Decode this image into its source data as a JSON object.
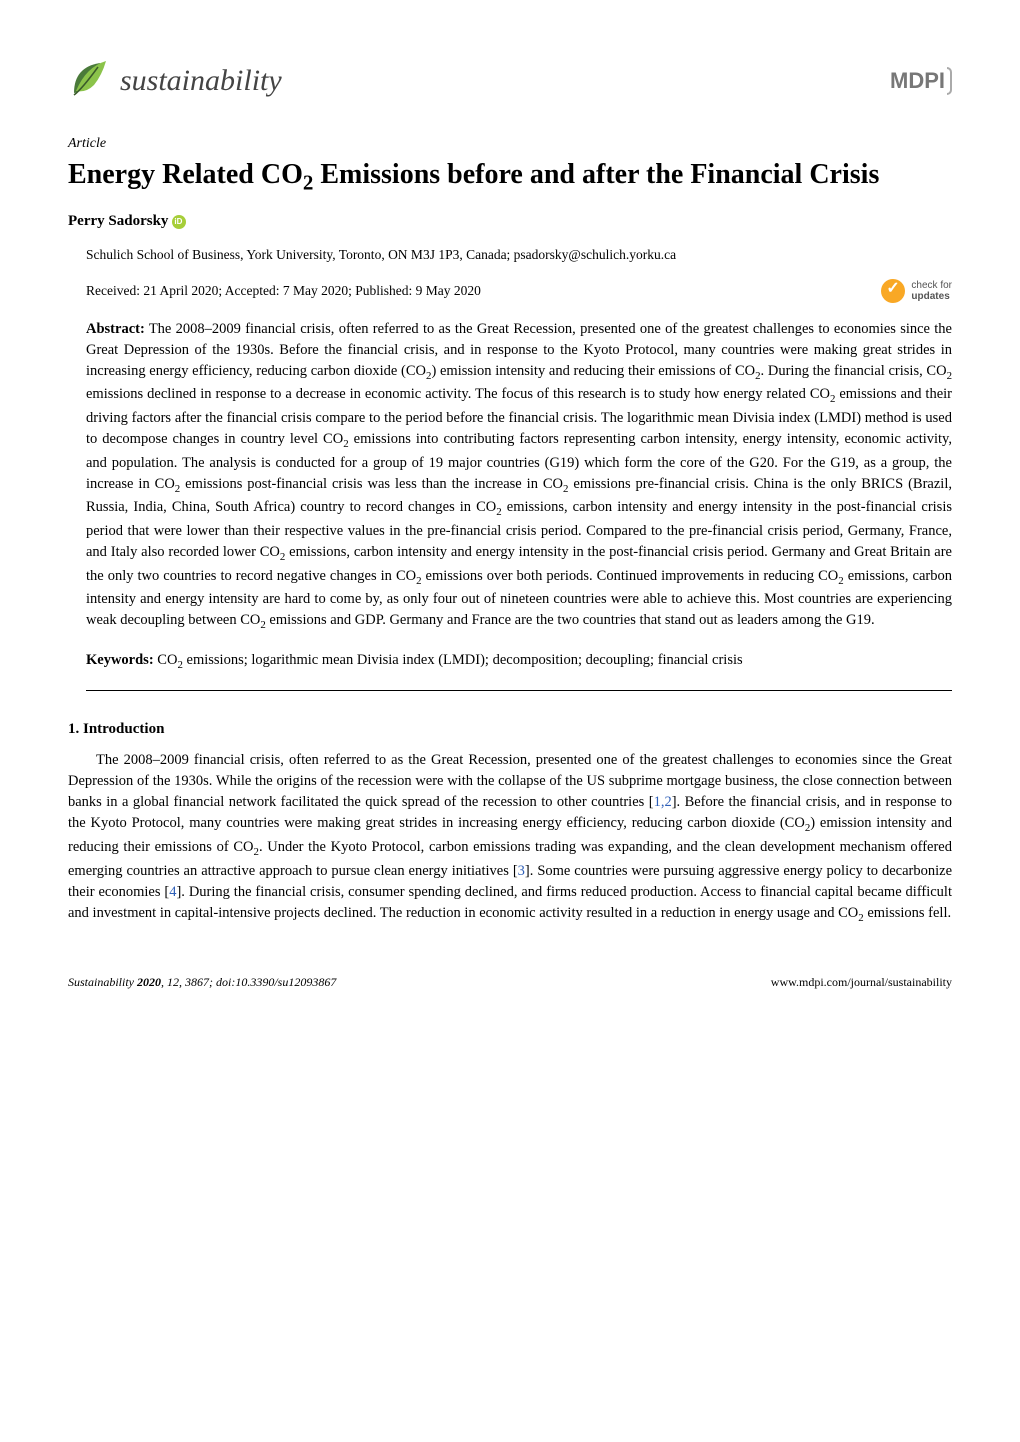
{
  "header": {
    "journal_name": "sustainability",
    "publisher": "MDPI",
    "leaf_color": "#4a7a3a",
    "leaf_accent_color": "#8bc34a"
  },
  "article": {
    "type": "Article",
    "title_html": "Energy Related CO<sub>2</sub> Emissions before and after the Financial Crisis",
    "author": "Perry Sadorsky",
    "has_orcid": true,
    "affiliation": "Schulich School of Business, York University, Toronto, ON M3J 1P3, Canada; psadorsky@schulich.yorku.ca",
    "dates": "Received: 21 April 2020; Accepted: 7 May 2020; Published: 9 May 2020",
    "check_updates_line1": "check for",
    "check_updates_line2": "updates"
  },
  "abstract": {
    "label": "Abstract:",
    "text_html": "The 2008–2009 financial crisis, often referred to as the Great Recession, presented one of the greatest challenges to economies since the Great Depression of the 1930s. Before the financial crisis, and in response to the Kyoto Protocol, many countries were making great strides in increasing energy efficiency, reducing carbon dioxide (CO<sub>2</sub>) emission intensity and reducing their emissions of CO<sub>2</sub>. During the financial crisis, CO<sub>2</sub> emissions declined in response to a decrease in economic activity. The focus of this research is to study how energy related CO<sub>2</sub> emissions and their driving factors after the financial crisis compare to the period before the financial crisis. The logarithmic mean Divisia index (LMDI) method is used to decompose changes in country level CO<sub>2</sub> emissions into contributing factors representing carbon intensity, energy intensity, economic activity, and population. The analysis is conducted for a group of 19 major countries (G19) which form the core of the G20. For the G19, as a group, the increase in CO<sub>2</sub> emissions post-financial crisis was less than the increase in CO<sub>2</sub> emissions pre-financial crisis. China is the only BRICS (Brazil, Russia, India, China, South Africa) country to record changes in CO<sub>2</sub> emissions, carbon intensity and energy intensity in the post-financial crisis period that were lower than their respective values in the pre-financial crisis period. Compared to the pre-financial crisis period, Germany, France, and Italy also recorded lower CO<sub>2</sub> emissions, carbon intensity and energy intensity in the post-financial crisis period. Germany and Great Britain are the only two countries to record negative changes in CO<sub>2</sub> emissions over both periods. Continued improvements in reducing CO<sub>2</sub> emissions, carbon intensity and energy intensity are hard to come by, as only four out of nineteen countries were able to achieve this. Most countries are experiencing weak decoupling between CO<sub>2</sub> emissions and GDP. Germany and France are the two countries that stand out as leaders among the G19."
  },
  "keywords": {
    "label": "Keywords:",
    "text_html": "CO<sub>2</sub> emissions; logarithmic mean Divisia index (LMDI); decomposition; decoupling; financial crisis"
  },
  "section": {
    "title": "1. Introduction",
    "text_html": "The 2008–2009 financial crisis, often referred to as the Great Recession, presented one of the greatest challenges to economies since the Great Depression of the 1930s. While the origins of the recession were with the collapse of the US subprime mortgage business, the close connection between banks in a global financial network facilitated the quick spread of the recession to other countries [1,2]. Before the financial crisis, and in response to the Kyoto Protocol, many countries were making great strides in increasing energy efficiency, reducing carbon dioxide (CO<sub>2</sub>) emission intensity and reducing their emissions of CO<sub>2</sub>. Under the Kyoto Protocol, carbon emissions trading was expanding, and the clean development mechanism offered emerging countries an attractive approach to pursue clean energy initiatives [3]. Some countries were pursuing aggressive energy policy to decarbonize their economies [4]. During the financial crisis, consumer spending declined, and firms reduced production. Access to financial capital became difficult and investment in capital-intensive projects declined. The reduction in economic activity resulted in a reduction in energy usage and CO<sub>2</sub> emissions fell."
  },
  "footer": {
    "left_html": "<i>Sustainability</i> <b>2020</b>, <i>12</i>, 3867; doi:10.3390/su12093867",
    "right": "www.mdpi.com/journal/sustainability"
  },
  "citation_color": "#2e5fb8",
  "colors": {
    "text": "#000000",
    "background": "#ffffff",
    "orcid": "#a6ce39",
    "check_updates": "#f9a825"
  }
}
